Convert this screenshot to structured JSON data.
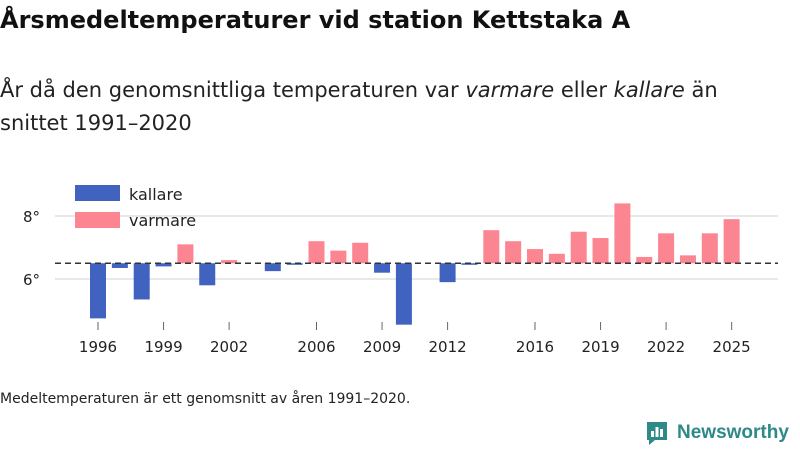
{
  "header": {
    "title": "Årsmedeltemperaturer vid station Kettstaka A",
    "subtitle_prefix": "År då den genomsnittliga temperaturen var ",
    "subtitle_warm": "varmare",
    "subtitle_mid": " eller ",
    "subtitle_cold": "kallare",
    "subtitle_suffix": " än snittet 1991–2020"
  },
  "footnote": "Medeltemperaturen är ett genomsnitt av åren 1991–2020.",
  "brand": {
    "name": "Newsworthy",
    "color": "#2d8a86"
  },
  "colors": {
    "cold": "#3f63bf",
    "warm": "#fc8592",
    "grid": "#d9d9d9",
    "mean_line": "#333333"
  },
  "chart_data": {
    "type": "bar",
    "title": "Årsmedeltemperaturer vid station Kettstaka A",
    "xlabel": "",
    "ylabel": "",
    "baseline": 6.5,
    "ylim": [
      4.5,
      8.9
    ],
    "yticks": [
      6,
      8
    ],
    "ytick_labels": [
      "6°",
      "8°"
    ],
    "xticks": [
      1996,
      1999,
      2002,
      2006,
      2009,
      2012,
      2016,
      2019,
      2022,
      2025
    ],
    "legend": [
      {
        "name": "kallare",
        "color": "#3f63bf"
      },
      {
        "name": "varmare",
        "color": "#fc8592"
      }
    ],
    "legend_position": "top-left",
    "years": [
      1996,
      1997,
      1998,
      1999,
      2000,
      2001,
      2002,
      2003,
      2004,
      2005,
      2006,
      2007,
      2008,
      2009,
      2010,
      2011,
      2012,
      2013,
      2014,
      2015,
      2016,
      2017,
      2018,
      2019,
      2020,
      2021,
      2022,
      2023,
      2024,
      2025
    ],
    "values": [
      4.75,
      6.35,
      5.35,
      6.4,
      7.1,
      5.8,
      6.6,
      null,
      6.25,
      6.45,
      7.2,
      6.9,
      7.15,
      6.2,
      4.55,
      null,
      5.9,
      6.45,
      7.55,
      7.2,
      6.95,
      6.8,
      7.5,
      7.3,
      8.4,
      6.7,
      7.45,
      6.75,
      7.45,
      7.9
    ]
  }
}
